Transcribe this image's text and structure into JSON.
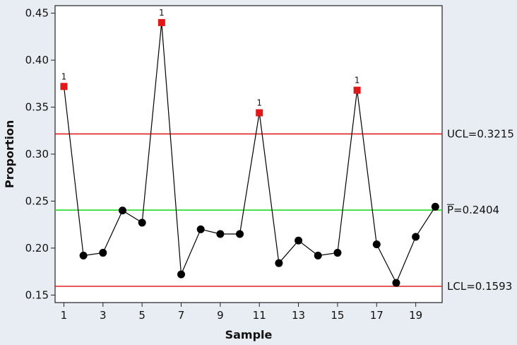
{
  "chart_data": {
    "type": "line",
    "chart_kind": "P control chart",
    "xlabel": "Sample",
    "ylabel": "Proportion",
    "x": [
      1,
      2,
      3,
      4,
      5,
      6,
      7,
      8,
      9,
      10,
      11,
      12,
      13,
      14,
      15,
      16,
      17,
      18,
      19,
      20
    ],
    "series": [
      {
        "values": [
          0.372,
          0.192,
          0.195,
          0.24,
          0.227,
          0.44,
          0.172,
          0.22,
          0.215,
          0.215,
          0.344,
          0.184,
          0.208,
          0.192,
          0.195,
          0.368,
          0.204,
          0.163,
          0.212,
          0.244
        ]
      }
    ],
    "out_of_control_points": [
      1,
      6,
      11,
      16
    ],
    "out_of_control_label": "1",
    "xlim": [
      0.55,
      20.35
    ],
    "ylim": [
      0.142,
      0.458
    ],
    "xticks": [
      1,
      3,
      5,
      7,
      9,
      11,
      13,
      15,
      17,
      19
    ],
    "yticks": [
      0.15,
      0.2,
      0.25,
      0.3,
      0.35,
      0.4,
      0.45
    ],
    "ytick_labels": [
      "0.15",
      "0.20",
      "0.25",
      "0.30",
      "0.35",
      "0.40",
      "0.45"
    ],
    "limits": {
      "ucl": {
        "value": 0.3215,
        "label": "UCL=0.3215",
        "color": "#e02020"
      },
      "center": {
        "value": 0.2404,
        "label": "P=0.2404",
        "color": "#20dd20"
      },
      "lcl": {
        "value": 0.1593,
        "label": "LCL=0.1593",
        "color": "#e02020"
      }
    },
    "grid": false,
    "colors": {
      "in_control_point": "#000000",
      "out_of_control_point": "#e01818",
      "line": "#000000"
    }
  }
}
